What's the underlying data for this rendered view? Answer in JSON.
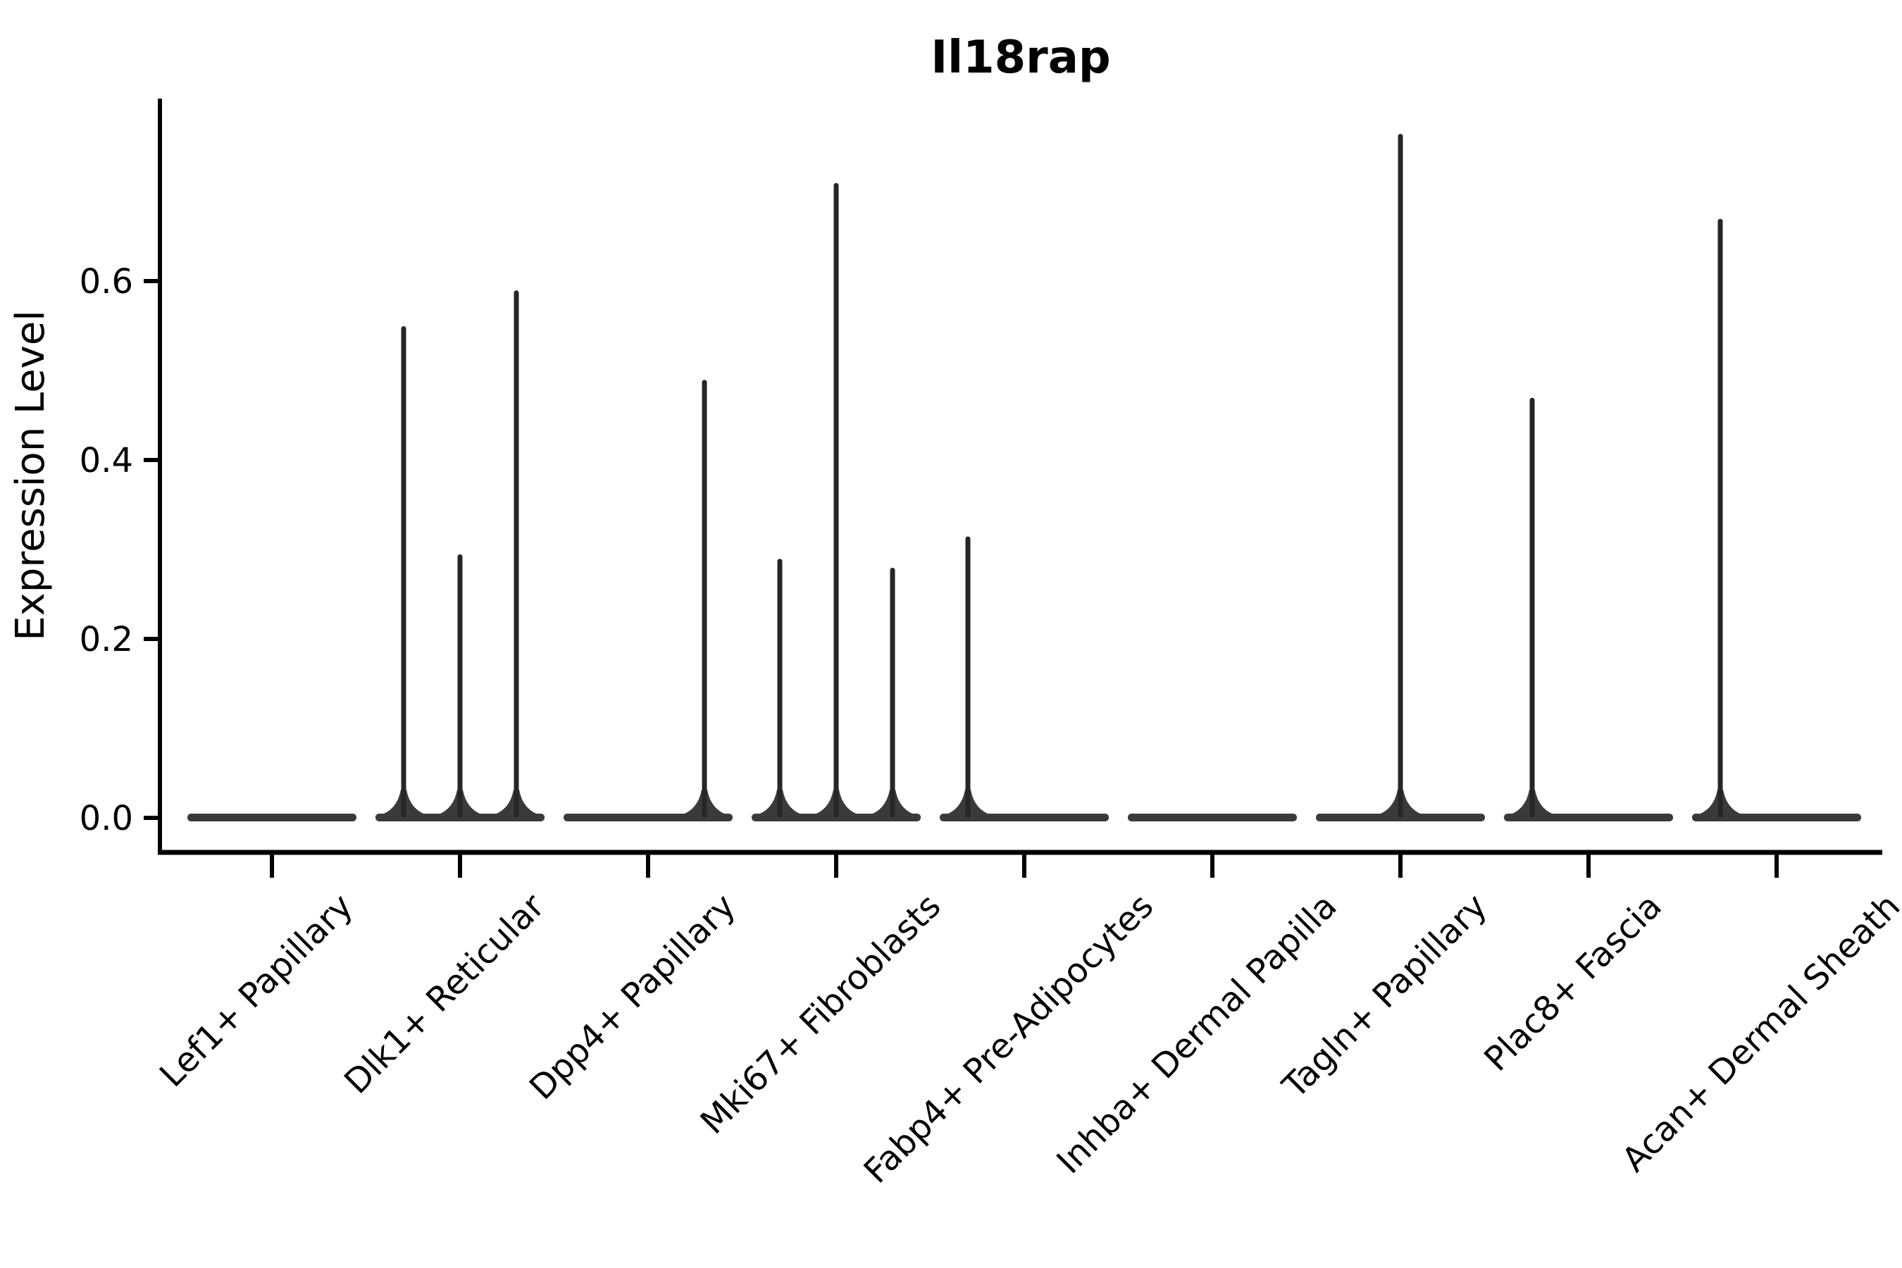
{
  "chart_data": {
    "type": "violin",
    "title": "Il18rap",
    "xlabel": "",
    "ylabel": "Expression Level",
    "ylim": [
      0,
      0.8
    ],
    "yticks": [
      0.0,
      0.2,
      0.4,
      0.6
    ],
    "ytick_labels": [
      "0.0",
      "0.2",
      "0.4",
      "0.6"
    ],
    "grid": false,
    "legend": "none",
    "groups_per_category": 3,
    "categories": [
      "Lef1+ Papillary",
      "Dlk1+ Reticular",
      "Dpp4+ Papillary",
      "Mki67+ Fibroblasts",
      "Fabp4+ Pre-Adipocytes",
      "Inhba+ Dermal Papilla",
      "Tagln+ Papillary",
      "Plac8+ Fascia",
      "Acan+ Dermal Sheath"
    ],
    "description": "Violin plot of Il18rap expression; each category holds 3 thin sub-violins flattened at 0 with occasional narrow spikes up to the max expressing cell.",
    "sub_violin_max_expression": [
      [
        0,
        0,
        0
      ],
      [
        0.55,
        0.295,
        0.59
      ],
      [
        0,
        0,
        0.49
      ],
      [
        0.29,
        0.71,
        0.28
      ],
      [
        0.315,
        0,
        0
      ],
      [
        0,
        0,
        0
      ],
      [
        0,
        0.765,
        0
      ],
      [
        0.47,
        0,
        0
      ],
      [
        0.67,
        0,
        0
      ]
    ]
  },
  "style": {
    "violin_fill": "#3a3a3a",
    "violin_stroke": "#262626",
    "axis_color": "#000000",
    "text_color": "#000000",
    "background": "#ffffff"
  }
}
